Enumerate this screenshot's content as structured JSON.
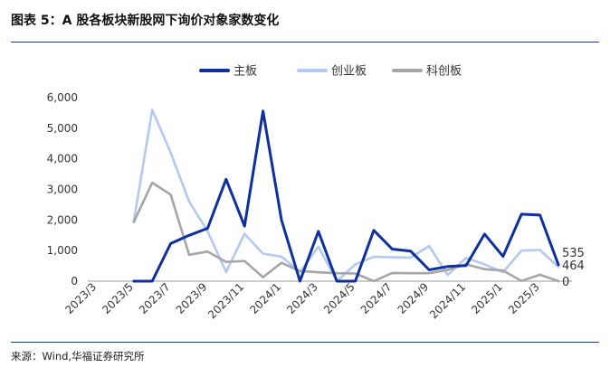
{
  "figure": {
    "title": "图表 5：A 股各板块新股网下询价对象家数变化",
    "source": "来源：Wind,华福证券研究所"
  },
  "chart_data": {
    "type": "line",
    "x": [
      "2023/3",
      "2023/4",
      "2023/5",
      "2023/6",
      "2023/7",
      "2023/8",
      "2023/9",
      "2023/10",
      "2023/11",
      "2023/12",
      "2024/1",
      "2024/2",
      "2024/3",
      "2024/4",
      "2024/5",
      "2024/6",
      "2024/7",
      "2024/8",
      "2024/9",
      "2024/10",
      "2024/11",
      "2024/12",
      "2025/1",
      "2025/2",
      "2025/3",
      "2025/4"
    ],
    "x_tick_labels": [
      "2023/3",
      "2023/5",
      "2023/7",
      "2023/9",
      "2023/11",
      "2024/1",
      "2024/3",
      "2024/5",
      "2024/7",
      "2024/9",
      "2024/11",
      "2025/1",
      "2025/3"
    ],
    "y_ticks": [
      "0",
      "1,000",
      "2,000",
      "3,000",
      "4,000",
      "5,000",
      "6,000"
    ],
    "ylim": [
      0,
      6000
    ],
    "grid": false,
    "legend_position": "top",
    "series": [
      {
        "name": "主板",
        "color": "#0d2fa0",
        "values": [
          null,
          null,
          0,
          0,
          1230,
          1500,
          1730,
          3330,
          1800,
          5560,
          2000,
          0,
          1630,
          0,
          0,
          1660,
          1050,
          980,
          370,
          480,
          510,
          1540,
          810,
          2190,
          2160,
          535
        ]
      },
      {
        "name": "创业板",
        "color": "#b3c8f3",
        "values": [
          null,
          null,
          1950,
          5600,
          4200,
          2600,
          1630,
          300,
          1550,
          900,
          800,
          300,
          1130,
          0,
          550,
          800,
          780,
          770,
          1150,
          200,
          760,
          550,
          290,
          1000,
          1020,
          464
        ]
      },
      {
        "name": "科创板",
        "color": "#a6a6a6",
        "values": [
          null,
          null,
          1930,
          3220,
          2830,
          860,
          970,
          630,
          660,
          130,
          600,
          330,
          290,
          260,
          250,
          0,
          270,
          260,
          260,
          370,
          550,
          390,
          350,
          10,
          210,
          0
        ]
      }
    ],
    "end_labels": [
      "535",
      "464",
      "0"
    ]
  }
}
